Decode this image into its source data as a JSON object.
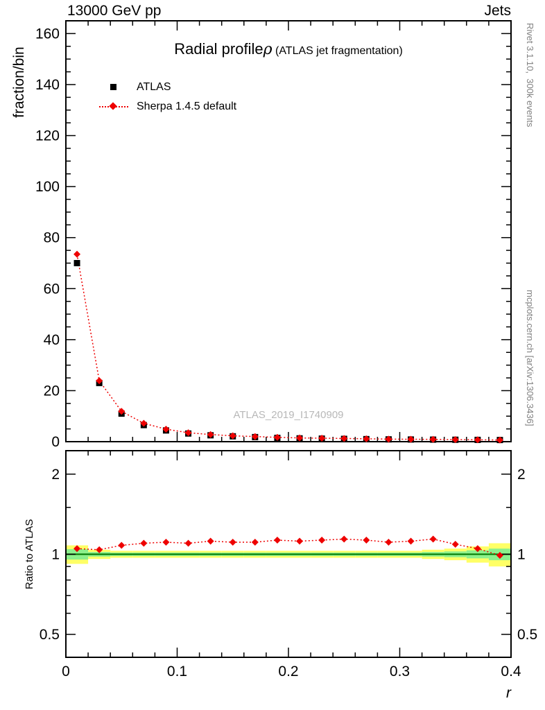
{
  "header": {
    "left": "13000 GeV pp",
    "right": "Jets"
  },
  "side_right": {
    "top": "Rivet 3.1.10,  300k events",
    "bottom": "mcplots.cern.ch [arXiv:1306.3436]"
  },
  "watermark": "ATLAS_2019_I1740909",
  "title": {
    "main": "Radial profile",
    "symbol": "ρ",
    "sub": " (ATLAS jet fragmentation)"
  },
  "axes": {
    "y_top_label": "fraction/bin",
    "y_ratio_label": "Ratio to ATLAS",
    "x_label": "r"
  },
  "legend": [
    {
      "label": "ATLAS",
      "marker": "square",
      "color": "#000000"
    },
    {
      "label": "Sherpa 1.4.5 default",
      "marker": "diamond",
      "color": "#ee0000"
    }
  ],
  "chart_data": {
    "type": "scatter",
    "title": "Radial profile ρ (ATLAS jet fragmentation)",
    "xlabel": "r",
    "x_range": [
      0,
      0.4
    ],
    "x_major_ticks": [
      0,
      0.1,
      0.2,
      0.3,
      0.4
    ],
    "x_tick_labels": [
      "0",
      "0.1",
      "0.2",
      "0.3",
      "0.4"
    ],
    "x_minor_step": 0.02,
    "bin_half_width": 0.01,
    "x": [
      0.01,
      0.03,
      0.05,
      0.07,
      0.09,
      0.11,
      0.13,
      0.15,
      0.17,
      0.19,
      0.21,
      0.23,
      0.25,
      0.27,
      0.29,
      0.31,
      0.33,
      0.35,
      0.37,
      0.39
    ],
    "top_panel": {
      "ylabel": "fraction/bin",
      "ylim": [
        0,
        165
      ],
      "y_major_step": 20,
      "y_minor_step": 5,
      "series": [
        {
          "name": "ATLAS",
          "marker": "square",
          "color": "#000000",
          "values": [
            70,
            23,
            11,
            6.5,
            4.4,
            3.2,
            2.5,
            2.1,
            1.8,
            1.5,
            1.3,
            1.2,
            1.1,
            1.0,
            0.9,
            0.85,
            0.8,
            0.75,
            0.7,
            0.65
          ]
        },
        {
          "name": "Sherpa 1.4.5 default",
          "marker": "diamond",
          "color": "#ee0000",
          "line": "dotted",
          "values": [
            73.5,
            23.9,
            11.9,
            7.2,
            4.9,
            3.5,
            2.8,
            2.3,
            2.0,
            1.7,
            1.46,
            1.36,
            1.25,
            1.13,
            1.0,
            0.95,
            0.91,
            0.82,
            0.74,
            0.64
          ]
        }
      ]
    },
    "ratio_panel": {
      "ylabel": "Ratio to ATLAS",
      "yscale": "log",
      "ylim": [
        0.41,
        2.45
      ],
      "y_major_ticks": [
        0.5,
        1,
        2
      ],
      "y_tick_labels": [
        "0.5",
        "1",
        "2"
      ],
      "y_minor_ticks": [
        0.6,
        0.7,
        0.8,
        0.9,
        1.5
      ],
      "ratio_values": [
        1.05,
        1.04,
        1.08,
        1.1,
        1.11,
        1.1,
        1.12,
        1.11,
        1.11,
        1.13,
        1.12,
        1.13,
        1.14,
        1.13,
        1.11,
        1.12,
        1.14,
        1.09,
        1.05,
        0.99
      ],
      "band_yellow": [
        [
          0.92,
          1.08
        ],
        [
          0.96,
          1.04
        ],
        [
          0.97,
          1.03
        ],
        [
          0.97,
          1.03
        ],
        [
          0.97,
          1.03
        ],
        [
          0.97,
          1.03
        ],
        [
          0.97,
          1.03
        ],
        [
          0.97,
          1.03
        ],
        [
          0.97,
          1.03
        ],
        [
          0.97,
          1.03
        ],
        [
          0.97,
          1.03
        ],
        [
          0.97,
          1.03
        ],
        [
          0.97,
          1.03
        ],
        [
          0.97,
          1.03
        ],
        [
          0.97,
          1.03
        ],
        [
          0.97,
          1.03
        ],
        [
          0.96,
          1.04
        ],
        [
          0.95,
          1.05
        ],
        [
          0.93,
          1.07
        ],
        [
          0.9,
          1.1
        ]
      ],
      "band_green": [
        [
          0.955,
          1.045
        ],
        [
          0.98,
          1.02
        ],
        [
          0.985,
          1.015
        ],
        [
          0.985,
          1.015
        ],
        [
          0.985,
          1.015
        ],
        [
          0.985,
          1.015
        ],
        [
          0.985,
          1.015
        ],
        [
          0.985,
          1.015
        ],
        [
          0.985,
          1.015
        ],
        [
          0.985,
          1.015
        ],
        [
          0.985,
          1.015
        ],
        [
          0.985,
          1.015
        ],
        [
          0.985,
          1.015
        ],
        [
          0.985,
          1.015
        ],
        [
          0.985,
          1.015
        ],
        [
          0.985,
          1.015
        ],
        [
          0.98,
          1.02
        ],
        [
          0.975,
          1.025
        ],
        [
          0.965,
          1.035
        ],
        [
          0.95,
          1.05
        ]
      ],
      "colors": {
        "yellow": "#ffff66",
        "green": "#8cf08c",
        "ref_line": "#007700",
        "mc": "#ee0000"
      }
    }
  }
}
